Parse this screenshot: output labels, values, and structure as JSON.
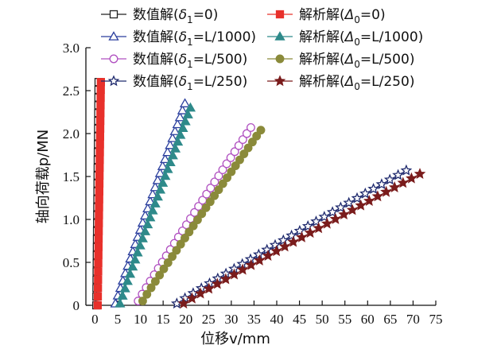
{
  "chart_data": {
    "type": "scatter",
    "xlabel": "位移v/mm",
    "ylabel": "轴向荷载p/MN",
    "xlim": [
      -2,
      75
    ],
    "ylim": [
      0,
      3.0
    ],
    "xticks": [
      "0",
      "5",
      "10",
      "15",
      "20",
      "25",
      "30",
      "35",
      "40",
      "45",
      "50",
      "55",
      "60",
      "65",
      "70",
      "75"
    ],
    "yticks": [
      "0",
      "0.5",
      "1.0",
      "1.5",
      "2.0",
      "2.5",
      "3.0"
    ],
    "grid": false,
    "legend_position": "top",
    "series": [
      {
        "name": "数值解(δ1=0)",
        "label": {
          "pre": "数值解(",
          "sym": "δ",
          "sub": "1",
          "post": "=0)"
        },
        "color": "#222222",
        "marker": "square-open",
        "line": true,
        "x_start": 0.3,
        "x_end": 0.8,
        "y_start": 0,
        "y_end": 2.6
      },
      {
        "name": "解析解(Δ0=0)",
        "label": {
          "pre": "解析解(",
          "sym": "Δ",
          "sub": "0",
          "post": "=0)"
        },
        "color": "#e8302b",
        "marker": "square-filled",
        "line": true,
        "x_start": 0.6,
        "x_end": 1.3,
        "y_start": 0,
        "y_end": 2.6
      },
      {
        "name": "数值解(δ1=L/1000)",
        "label": {
          "pre": "数值解(",
          "sym": "δ",
          "sub": "1",
          "post": "=L/1000)"
        },
        "color": "#2b3f9e",
        "marker": "triangle-open",
        "line": true,
        "x_start": 4.5,
        "x_end": 19.8,
        "y_start": 0.02,
        "y_end": 2.35
      },
      {
        "name": "解析解(Δ0=L/1000)",
        "label": {
          "pre": "解析解(",
          "sym": "Δ",
          "sub": "0",
          "post": "=L/1000)"
        },
        "color": "#2e8a8a",
        "marker": "triangle-filled",
        "line": true,
        "x_start": 5.5,
        "x_end": 21.0,
        "y_start": 0.02,
        "y_end": 2.3
      },
      {
        "name": "数值解(δ1=L/500)",
        "label": {
          "pre": "数值解(",
          "sym": "δ",
          "sub": "1",
          "post": "=L/500)"
        },
        "color": "#b050c0",
        "marker": "circle-open",
        "line": true,
        "x_start": 9.5,
        "x_end": 34.3,
        "y_start": 0.05,
        "y_end": 2.07
      },
      {
        "name": "解析解(Δ0=L/500)",
        "label": {
          "pre": "解析解(",
          "sym": "Δ",
          "sub": "0",
          "post": "=L/500)"
        },
        "color": "#8a8a3a",
        "marker": "circle-filled",
        "line": true,
        "x_start": 10.5,
        "x_end": 36.5,
        "y_start": 0.05,
        "y_end": 2.04
      },
      {
        "name": "数值解(δ1=L/250)",
        "label": {
          "pre": "数值解(",
          "sym": "δ",
          "sub": "1",
          "post": "=L/250)"
        },
        "color": "#1f2a6e",
        "marker": "star-open",
        "line": true,
        "x_start": 18.0,
        "x_end": 68.5,
        "y_start": 0.02,
        "y_end": 1.57
      },
      {
        "name": "解析解(Δ0=L/250)",
        "label": {
          "pre": "解析解(",
          "sym": "Δ",
          "sub": "0",
          "post": "=L/250)"
        },
        "color": "#7a1c1c",
        "marker": "star-filled",
        "line": true,
        "x_start": 19.5,
        "x_end": 71.5,
        "y_start": 0.02,
        "y_end": 1.53
      }
    ]
  }
}
